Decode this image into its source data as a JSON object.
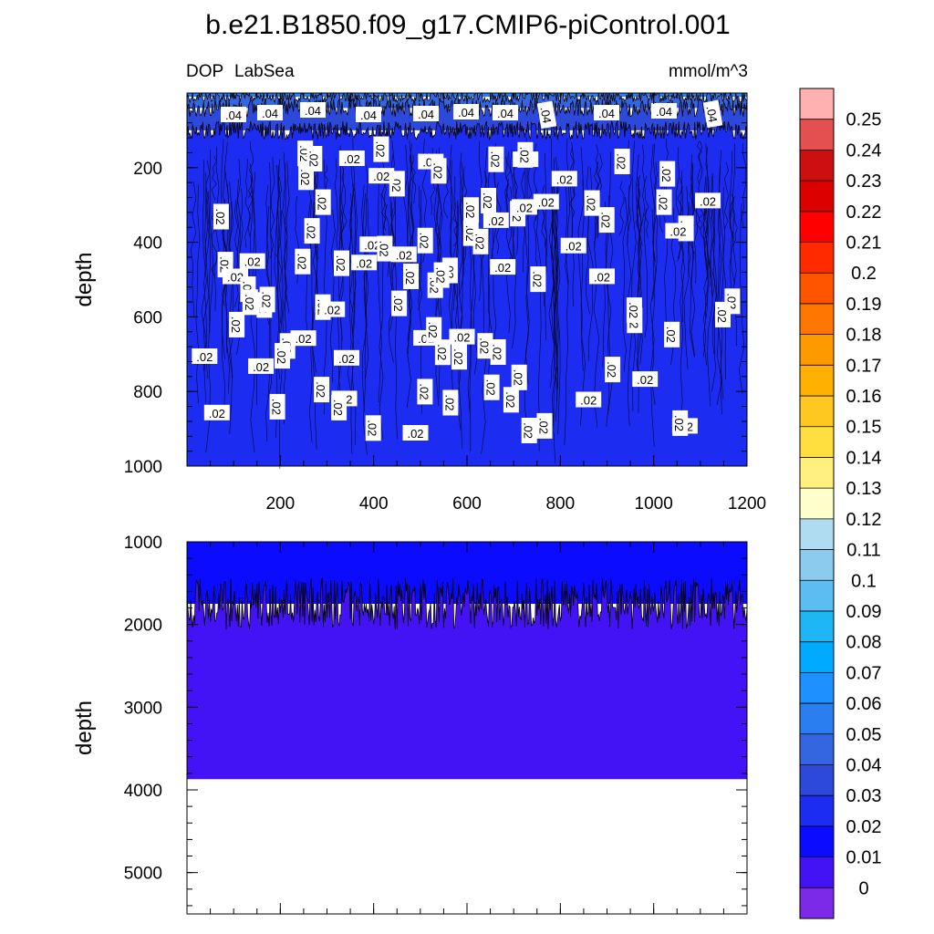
{
  "title": "b.e21.B1850.f09_g17.CMIP6-piControl.001",
  "chart_data": {
    "type": "heatmap",
    "variable": "DOP",
    "region": "LabSea",
    "units": "mmol/m^3",
    "ylabel": "depth",
    "xlim": [
      0,
      1200
    ],
    "xticks": [
      200,
      400,
      600,
      800,
      1000,
      1200
    ],
    "panels": [
      {
        "name": "upper",
        "ylim": [
          0,
          1000
        ],
        "yticks": [
          200,
          400,
          600,
          800,
          1000
        ],
        "bands": [
          {
            "from_depth": 0,
            "to_depth": 10,
            "value_range": [
              0.05,
              0.06
            ]
          },
          {
            "from_depth": 10,
            "to_depth": 40,
            "value_range": [
              0.04,
              0.05
            ]
          },
          {
            "from_depth": 40,
            "to_depth": 100,
            "value_range": [
              0.03,
              0.04
            ]
          },
          {
            "from_depth": 100,
            "to_depth": 1000,
            "value_range": [
              0.02,
              0.03
            ]
          }
        ],
        "contour_label_upper": ".04",
        "contour_label_lower": ".02"
      },
      {
        "name": "lower",
        "ylim": [
          1000,
          5500
        ],
        "yticks": [
          1000,
          2000,
          3000,
          4000,
          5000
        ],
        "bands": [
          {
            "from_depth": 1000,
            "to_depth": 1750,
            "value_range": [
              0.01,
              0.02
            ]
          },
          {
            "from_depth": 1750,
            "to_depth": 3870,
            "value_range": [
              0.0,
              0.01
            ]
          }
        ],
        "no_data_below": 3870
      }
    ],
    "colorbar": {
      "labels": [
        "0.25",
        "0.24",
        "0.23",
        "0.22",
        "0.21",
        "0.2",
        "0.19",
        "0.18",
        "0.17",
        "0.16",
        "0.15",
        "0.14",
        "0.13",
        "0.12",
        "0.11",
        "0.1",
        "0.09",
        "0.08",
        "0.07",
        "0.06",
        "0.05",
        "0.04",
        "0.03",
        "0.02",
        "0.01",
        "0"
      ],
      "colors": [
        "#ffb0b0",
        "#e45050",
        "#cc1010",
        "#dd0000",
        "#ff0000",
        "#ff2a00",
        "#ff5500",
        "#ff7700",
        "#ff9900",
        "#ffb000",
        "#ffc820",
        "#ffdf40",
        "#fff080",
        "#ffffcc",
        "#b0dcf2",
        "#8ccbee",
        "#5bbdf2",
        "#1eb6f5",
        "#00aaff",
        "#1e90ff",
        "#2b7ef0",
        "#3366e0",
        "#2d49dc",
        "#1c2cf0",
        "#0b0bff",
        "#4413f5",
        "#7d2ae8"
      ]
    }
  }
}
